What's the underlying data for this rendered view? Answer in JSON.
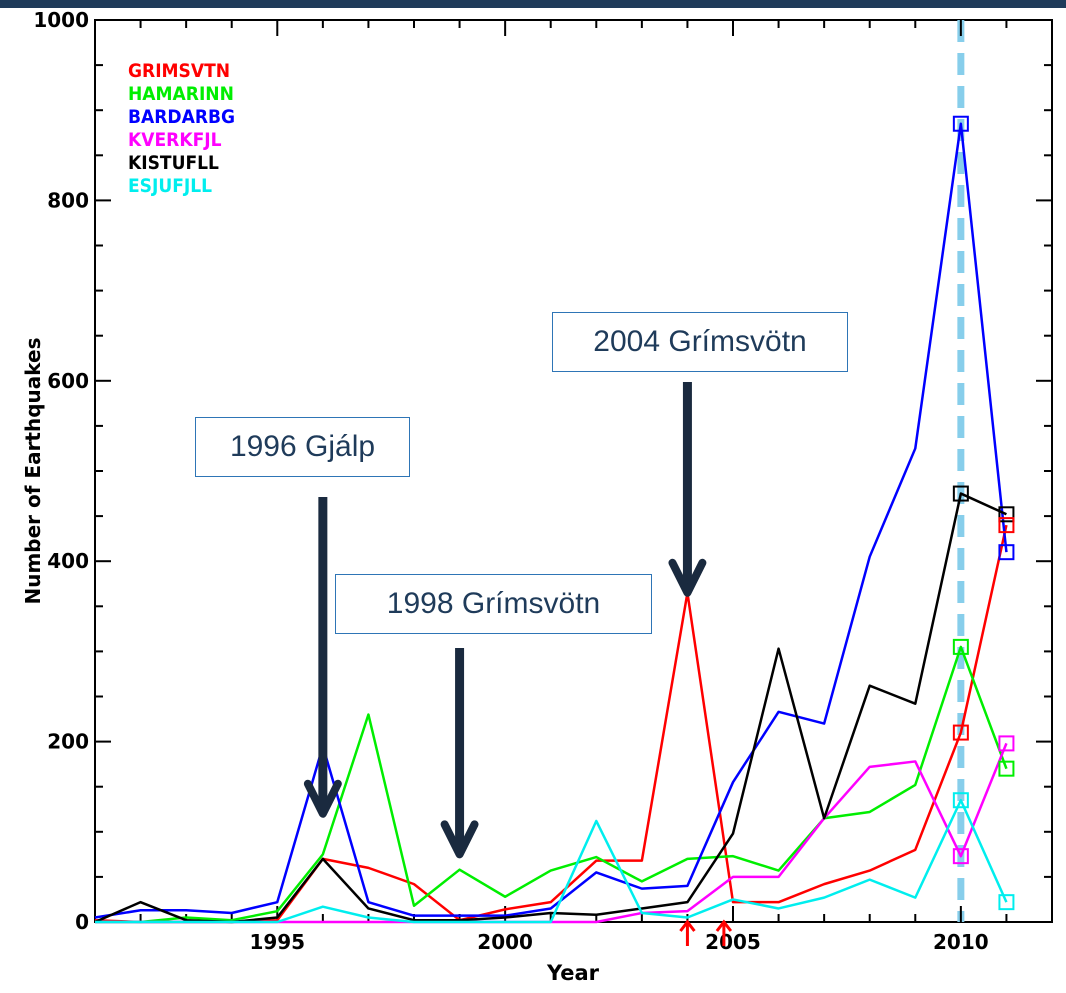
{
  "chart_data": {
    "type": "line",
    "xlabel": "Year",
    "ylabel": "Number of Earthquakes",
    "xlim": [
      1991,
      2012
    ],
    "ylim": [
      0,
      1000
    ],
    "x_ticks": [
      1995,
      2000,
      2005,
      2010
    ],
    "y_ticks": [
      0,
      200,
      400,
      600,
      800,
      1000
    ],
    "x": [
      1991,
      1992,
      1993,
      1994,
      1995,
      1996,
      1997,
      1998,
      1999,
      2000,
      2001,
      2002,
      2003,
      2004,
      2005,
      2006,
      2007,
      2008,
      2009,
      2010,
      2011
    ],
    "legend_position": "top-left",
    "series": [
      {
        "name": "GRIMSVTN",
        "color": "#ff0000",
        "values": [
          2,
          0,
          0,
          0,
          2,
          70,
          60,
          42,
          2,
          14,
          22,
          68,
          68,
          365,
          22,
          22,
          42,
          57,
          80,
          210,
          440
        ]
      },
      {
        "name": "HAMARINN",
        "color": "#00ee00",
        "values": [
          0,
          0,
          5,
          2,
          12,
          75,
          230,
          18,
          58,
          28,
          57,
          72,
          45,
          70,
          73,
          57,
          115,
          122,
          152,
          305,
          170
        ]
      },
      {
        "name": "BARDARBG",
        "color": "#0000ff",
        "values": [
          5,
          13,
          13,
          10,
          22,
          195,
          22,
          7,
          7,
          7,
          15,
          55,
          37,
          40,
          155,
          233,
          220,
          405,
          525,
          885,
          410
        ]
      },
      {
        "name": "KVERKFJL",
        "color": "#ff00ff",
        "values": [
          0,
          0,
          0,
          0,
          0,
          0,
          0,
          0,
          0,
          0,
          0,
          0,
          10,
          12,
          50,
          50,
          115,
          172,
          178,
          73,
          198
        ]
      },
      {
        "name": "KISTUFLL",
        "color": "#000000",
        "values": [
          0,
          22,
          2,
          0,
          5,
          70,
          15,
          2,
          2,
          5,
          10,
          8,
          15,
          22,
          98,
          303,
          115,
          262,
          242,
          475,
          452
        ]
      },
      {
        "name": "ESJUFJLL",
        "color": "#00eeee",
        "values": [
          0,
          0,
          0,
          0,
          0,
          17,
          5,
          0,
          0,
          0,
          0,
          112,
          10,
          5,
          25,
          15,
          27,
          47,
          27,
          135,
          22
        ]
      }
    ],
    "markers": [
      {
        "series": "BARDARBG",
        "x": 2010,
        "y": 885
      },
      {
        "series": "BARDARBG",
        "x": 2011,
        "y": 410
      },
      {
        "series": "KISTUFLL",
        "x": 2010,
        "y": 475
      },
      {
        "series": "KISTUFLL",
        "x": 2011,
        "y": 452
      },
      {
        "series": "GRIMSVTN",
        "x": 2011,
        "y": 440
      },
      {
        "series": "GRIMSVTN",
        "x": 2010,
        "y": 210
      },
      {
        "series": "HAMARINN",
        "x": 2010,
        "y": 305
      },
      {
        "series": "HAMARINN",
        "x": 2011,
        "y": 170
      },
      {
        "series": "KVERKFJL",
        "x": 2011,
        "y": 198
      },
      {
        "series": "KVERKFJL",
        "x": 2010,
        "y": 73
      },
      {
        "series": "ESJUFJLL",
        "x": 2010,
        "y": 135
      },
      {
        "series": "ESJUFJLL",
        "x": 2011,
        "y": 22
      }
    ],
    "reference_line": {
      "x": 2010,
      "color": "#87ceeb",
      "style": "dashed"
    },
    "red_arrows_x": [
      2004,
      2004.8
    ],
    "annotations": [
      {
        "label": "1996 Gjálp",
        "arrow_x": 1996,
        "arrow_tip_y": 120
      },
      {
        "label": "1998 Grímsvötn",
        "arrow_x": 1999,
        "arrow_tip_y": 75
      },
      {
        "label": "2004 Grímsvötn",
        "arrow_x": 2004,
        "arrow_tip_y": 365
      }
    ]
  }
}
